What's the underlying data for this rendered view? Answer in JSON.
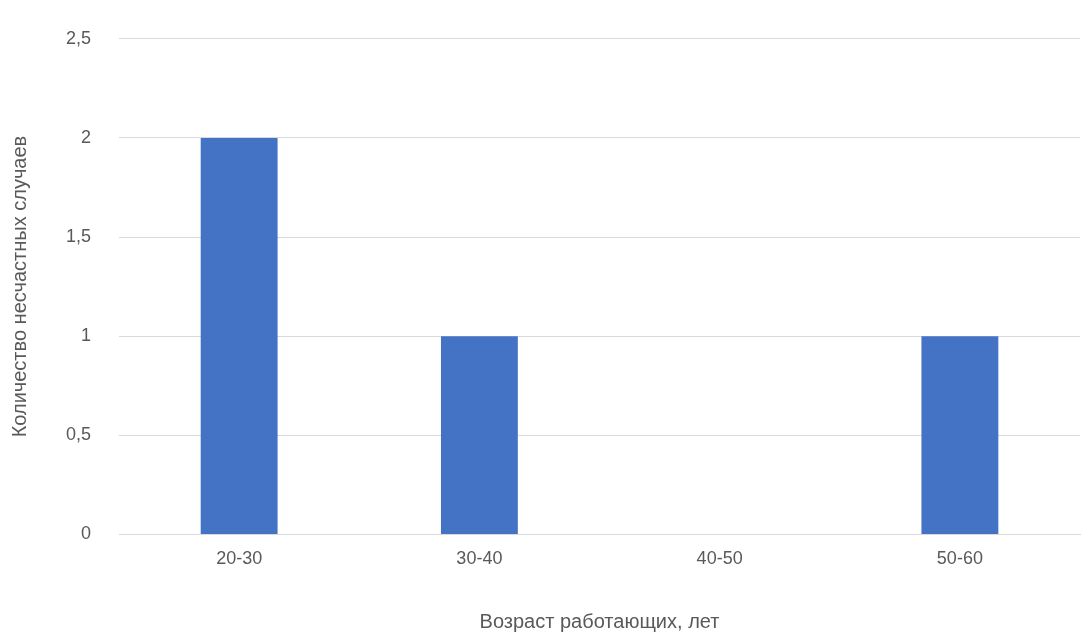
{
  "chart_data": {
    "type": "bar",
    "xlabel": "Возраст работающих, лет",
    "ylabel": "Количество несчастных случаев",
    "categories": [
      "20-30",
      "30-40",
      "40-50",
      "50-60"
    ],
    "values": [
      2,
      1,
      0,
      1
    ],
    "color": "#4472c4",
    "ylim": [
      0,
      2.5
    ],
    "yticks": [
      0,
      {
        "value": 0.5,
        "label": "0,5"
      },
      1,
      {
        "value": 1.5,
        "label": "1,5"
      },
      2,
      {
        "value": 2.5,
        "label": "2,5"
      }
    ],
    "grid": "y",
    "legend": false
  }
}
